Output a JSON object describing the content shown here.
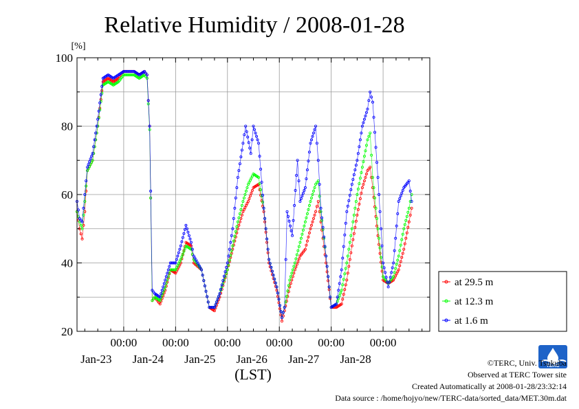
{
  "chart_data": {
    "type": "line",
    "title": "Relative Humidity / 2008-01-28",
    "ylabel": "[%]",
    "xlabel": "(LST)",
    "ylim": [
      20,
      100
    ],
    "yticks": [
      20,
      40,
      60,
      80,
      100
    ],
    "xlim": [
      -0.9,
      5.9
    ],
    "x_unit": "days since 2008-01-23 00:00 LST",
    "xticks": [
      {
        "x": 0,
        "time": "00:00",
        "date": "Jan-23"
      },
      {
        "x": 1,
        "time": "00:00",
        "date": "Jan-24"
      },
      {
        "x": 2,
        "time": "00:00",
        "date": "Jan-25"
      },
      {
        "x": 3,
        "time": "00:00",
        "date": "Jan-26"
      },
      {
        "x": 4,
        "time": "00:00",
        "date": "Jan-27"
      },
      {
        "x": 5,
        "time": "00:00",
        "date": "Jan-28"
      }
    ],
    "grid": true,
    "legend_position": "bottom-right outside",
    "series": [
      {
        "name": "at 29.5 m",
        "color": "#ff0000",
        "points": [
          [
            -0.9,
            55
          ],
          [
            -0.85,
            50
          ],
          [
            -0.8,
            47
          ],
          [
            -0.75,
            55
          ],
          [
            -0.7,
            67
          ],
          [
            -0.6,
            70
          ],
          [
            -0.5,
            80
          ],
          [
            -0.4,
            93
          ],
          [
            -0.3,
            94
          ],
          [
            -0.2,
            93
          ],
          [
            -0.1,
            94
          ],
          [
            0.0,
            96
          ],
          [
            0.2,
            96
          ],
          [
            0.3,
            95
          ],
          [
            0.4,
            96
          ],
          [
            0.45,
            95
          ],
          [
            0.5,
            80
          ],
          [
            0.52,
            59
          ],
          [
            0.55,
            29
          ],
          [
            0.6,
            30
          ],
          [
            0.7,
            28
          ],
          [
            0.8,
            32
          ],
          [
            0.9,
            38
          ],
          [
            1.0,
            37
          ],
          [
            1.1,
            40
          ],
          [
            1.2,
            46
          ],
          [
            1.3,
            45
          ],
          [
            1.35,
            40
          ],
          [
            1.5,
            38
          ],
          [
            1.65,
            27
          ],
          [
            1.75,
            26
          ],
          [
            1.85,
            30
          ],
          [
            2.0,
            38
          ],
          [
            2.1,
            44
          ],
          [
            2.2,
            50
          ],
          [
            2.3,
            55
          ],
          [
            2.4,
            58
          ],
          [
            2.5,
            62
          ],
          [
            2.6,
            63
          ],
          [
            2.7,
            55
          ],
          [
            2.8,
            40
          ],
          [
            2.95,
            32
          ],
          [
            3.05,
            23
          ],
          [
            3.1,
            26
          ],
          [
            3.2,
            33
          ],
          [
            3.3,
            38
          ],
          [
            3.4,
            42
          ],
          [
            3.5,
            44
          ],
          [
            3.6,
            50
          ],
          [
            3.7,
            55
          ],
          [
            3.75,
            58
          ],
          [
            3.8,
            52
          ],
          [
            3.9,
            40
          ],
          [
            4.0,
            27
          ],
          [
            4.1,
            27
          ],
          [
            4.2,
            28
          ],
          [
            4.3,
            35
          ],
          [
            4.4,
            45
          ],
          [
            4.5,
            54
          ],
          [
            4.6,
            62
          ],
          [
            4.7,
            67
          ],
          [
            4.75,
            68
          ],
          [
            4.8,
            62
          ],
          [
            4.9,
            48
          ],
          [
            5.0,
            35
          ],
          [
            5.1,
            34
          ],
          [
            5.2,
            35
          ],
          [
            5.3,
            38
          ],
          [
            5.4,
            44
          ],
          [
            5.5,
            52
          ],
          [
            5.55,
            56
          ]
        ]
      },
      {
        "name": "at 12.3 m",
        "color": "#00ff00",
        "points": [
          [
            -0.9,
            55
          ],
          [
            -0.85,
            52
          ],
          [
            -0.8,
            50
          ],
          [
            -0.75,
            58
          ],
          [
            -0.7,
            67
          ],
          [
            -0.6,
            70
          ],
          [
            -0.5,
            80
          ],
          [
            -0.4,
            92
          ],
          [
            -0.3,
            93
          ],
          [
            -0.2,
            92
          ],
          [
            -0.1,
            93
          ],
          [
            0.0,
            95
          ],
          [
            0.2,
            95
          ],
          [
            0.3,
            94
          ],
          [
            0.4,
            95
          ],
          [
            0.45,
            94
          ],
          [
            0.5,
            79
          ],
          [
            0.52,
            59
          ],
          [
            0.55,
            29
          ],
          [
            0.6,
            30
          ],
          [
            0.7,
            29
          ],
          [
            0.8,
            33
          ],
          [
            0.9,
            38
          ],
          [
            1.0,
            38
          ],
          [
            1.1,
            41
          ],
          [
            1.2,
            45
          ],
          [
            1.3,
            44
          ],
          [
            1.35,
            41
          ],
          [
            1.5,
            38
          ],
          [
            1.65,
            27
          ],
          [
            1.75,
            27
          ],
          [
            1.85,
            31
          ],
          [
            2.0,
            38
          ],
          [
            2.1,
            45
          ],
          [
            2.2,
            52
          ],
          [
            2.3,
            58
          ],
          [
            2.4,
            63
          ],
          [
            2.5,
            66
          ],
          [
            2.6,
            65
          ],
          [
            2.7,
            56
          ],
          [
            2.8,
            41
          ],
          [
            2.95,
            33
          ],
          [
            3.05,
            24
          ],
          [
            3.1,
            27
          ],
          [
            3.2,
            35
          ],
          [
            3.3,
            40
          ],
          [
            3.4,
            46
          ],
          [
            3.5,
            52
          ],
          [
            3.6,
            58
          ],
          [
            3.7,
            63
          ],
          [
            3.75,
            64
          ],
          [
            3.8,
            55
          ],
          [
            3.9,
            42
          ],
          [
            4.0,
            27
          ],
          [
            4.1,
            28
          ],
          [
            4.2,
            32
          ],
          [
            4.3,
            40
          ],
          [
            4.4,
            50
          ],
          [
            4.5,
            60
          ],
          [
            4.6,
            68
          ],
          [
            4.7,
            76
          ],
          [
            4.75,
            78
          ],
          [
            4.8,
            65
          ],
          [
            4.9,
            50
          ],
          [
            5.0,
            36
          ],
          [
            5.1,
            34
          ],
          [
            5.2,
            36
          ],
          [
            5.3,
            42
          ],
          [
            5.4,
            50
          ],
          [
            5.5,
            56
          ],
          [
            5.55,
            60
          ]
        ]
      },
      {
        "name": "at 1.6 m",
        "color": "#0000ff",
        "points": [
          [
            -0.9,
            58
          ],
          [
            -0.85,
            53
          ],
          [
            -0.8,
            52
          ],
          [
            -0.75,
            60
          ],
          [
            -0.7,
            68
          ],
          [
            -0.6,
            72
          ],
          [
            -0.5,
            82
          ],
          [
            -0.4,
            94
          ],
          [
            -0.3,
            95
          ],
          [
            -0.2,
            94
          ],
          [
            -0.1,
            95
          ],
          [
            0.0,
            96
          ],
          [
            0.2,
            96
          ],
          [
            0.3,
            95
          ],
          [
            0.4,
            96
          ],
          [
            0.45,
            95
          ],
          [
            0.5,
            80
          ],
          [
            0.52,
            61
          ],
          [
            0.55,
            32
          ],
          [
            0.6,
            31
          ],
          [
            0.7,
            30
          ],
          [
            0.8,
            35
          ],
          [
            0.9,
            40
          ],
          [
            1.0,
            40
          ],
          [
            1.1,
            45
          ],
          [
            1.2,
            51
          ],
          [
            1.3,
            46
          ],
          [
            1.35,
            42
          ],
          [
            1.5,
            38
          ],
          [
            1.65,
            27
          ],
          [
            1.75,
            27
          ],
          [
            1.85,
            31
          ],
          [
            2.0,
            40
          ],
          [
            2.1,
            50
          ],
          [
            2.2,
            65
          ],
          [
            2.3,
            75
          ],
          [
            2.35,
            80
          ],
          [
            2.45,
            72
          ],
          [
            2.5,
            80
          ],
          [
            2.6,
            75
          ],
          [
            2.7,
            56
          ],
          [
            2.8,
            41
          ],
          [
            2.95,
            33
          ],
          [
            3.05,
            24
          ],
          [
            3.1,
            27
          ],
          [
            3.15,
            55
          ],
          [
            3.25,
            48
          ],
          [
            3.35,
            70
          ],
          [
            3.4,
            58
          ],
          [
            3.5,
            62
          ],
          [
            3.6,
            75
          ],
          [
            3.7,
            80
          ],
          [
            3.75,
            70
          ],
          [
            3.8,
            56
          ],
          [
            3.9,
            42
          ],
          [
            4.0,
            27
          ],
          [
            4.1,
            28
          ],
          [
            4.2,
            38
          ],
          [
            4.3,
            55
          ],
          [
            4.4,
            63
          ],
          [
            4.5,
            70
          ],
          [
            4.6,
            80
          ],
          [
            4.7,
            85
          ],
          [
            4.75,
            90
          ],
          [
            4.8,
            87
          ],
          [
            4.9,
            65
          ],
          [
            5.0,
            40
          ],
          [
            5.1,
            33
          ],
          [
            5.2,
            40
          ],
          [
            5.3,
            58
          ],
          [
            5.4,
            62
          ],
          [
            5.5,
            64
          ],
          [
            5.55,
            58
          ]
        ]
      }
    ]
  },
  "credits": {
    "copyright": "©TERC, Univ. Tsukuba",
    "observed": "Observed at TERC Tower site",
    "created": "Created Automatically at 2008-01-28/23:32:14",
    "source": "Data source : /home/hojyo/new/TERC-data/sorted_data/MET.30m.dat",
    "logo_text": "TERC"
  }
}
